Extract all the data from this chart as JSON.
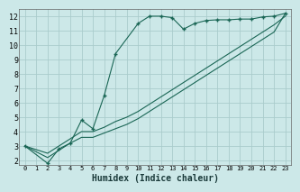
{
  "xlabel": "Humidex (Indice chaleur)",
  "bg_color": "#cce8e8",
  "grid_color": "#aacccc",
  "line_color": "#1a6655",
  "xlim": [
    -0.5,
    23.5
  ],
  "ylim": [
    1.7,
    12.5
  ],
  "xticks": [
    0,
    1,
    2,
    3,
    4,
    5,
    6,
    7,
    8,
    9,
    10,
    11,
    12,
    13,
    14,
    15,
    16,
    17,
    18,
    19,
    20,
    21,
    22,
    23
  ],
  "yticks": [
    2,
    3,
    4,
    5,
    6,
    7,
    8,
    9,
    10,
    11,
    12
  ],
  "s1x": [
    0,
    2,
    3,
    4,
    5,
    6,
    7,
    8,
    10,
    11,
    12,
    13,
    14,
    15,
    16,
    17,
    18,
    19,
    20,
    21,
    22,
    23
  ],
  "s1y": [
    3.0,
    1.8,
    2.8,
    3.2,
    4.8,
    4.2,
    6.5,
    9.4,
    11.5,
    12.0,
    12.0,
    11.9,
    11.1,
    11.5,
    11.7,
    11.75,
    11.75,
    11.8,
    11.8,
    11.95,
    12.0,
    12.2
  ],
  "s2x": [
    0,
    2,
    3,
    4,
    5,
    6,
    7,
    8,
    9,
    10,
    11,
    12,
    13,
    14,
    15,
    16,
    17,
    18,
    19,
    20,
    21,
    22,
    23
  ],
  "s2y": [
    3.0,
    2.5,
    3.0,
    3.5,
    4.0,
    4.0,
    4.3,
    4.7,
    5.0,
    5.4,
    5.9,
    6.4,
    6.9,
    7.4,
    7.9,
    8.4,
    8.9,
    9.4,
    9.9,
    10.4,
    10.9,
    11.4,
    12.0
  ],
  "s3x": [
    0,
    2,
    3,
    4,
    5,
    6,
    7,
    8,
    9,
    10,
    11,
    12,
    13,
    14,
    15,
    16,
    17,
    18,
    19,
    20,
    21,
    22,
    23
  ],
  "s3y": [
    3.0,
    2.2,
    2.7,
    3.2,
    3.6,
    3.6,
    3.9,
    4.2,
    4.5,
    4.9,
    5.4,
    5.9,
    6.4,
    6.9,
    7.4,
    7.9,
    8.4,
    8.9,
    9.4,
    9.9,
    10.4,
    10.9,
    12.2
  ]
}
